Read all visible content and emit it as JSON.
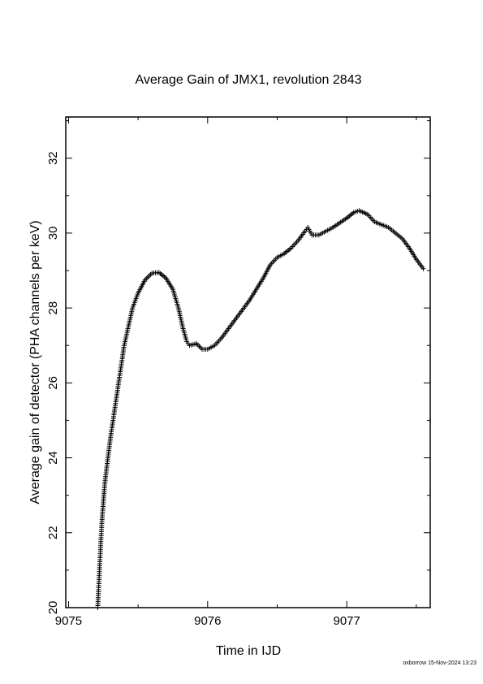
{
  "chart_data": {
    "type": "scatter",
    "title": "Average Gain of JMX1, revolution 2843",
    "xlabel": "Time in IJD",
    "ylabel": "Average gain of detector (PHA channels per keV)",
    "xlim": [
      9074.98,
      9077.6
    ],
    "ylim": [
      20,
      33.1
    ],
    "x_ticks": [
      9075,
      9076,
      9077
    ],
    "y_ticks": [
      20,
      22,
      24,
      26,
      28,
      30,
      32
    ],
    "x_tick_labels": [
      "9075",
      "9076",
      "9077"
    ],
    "y_tick_labels": [
      "20",
      "22",
      "24",
      "26",
      "28",
      "30",
      "32"
    ],
    "marker": "plus",
    "grid": false,
    "legend": "none",
    "series": [
      {
        "points": [
          [
            9075.21,
            20.0
          ],
          [
            9075.22,
            20.8
          ],
          [
            9075.23,
            21.6
          ],
          [
            9075.24,
            22.3
          ],
          [
            9075.25,
            22.8
          ],
          [
            9075.26,
            23.3
          ],
          [
            9075.28,
            23.9
          ],
          [
            9075.3,
            24.5
          ],
          [
            9075.32,
            25.0
          ],
          [
            9075.34,
            25.5
          ],
          [
            9075.36,
            26.0
          ],
          [
            9075.38,
            26.5
          ],
          [
            9075.4,
            27.0
          ],
          [
            9075.43,
            27.5
          ],
          [
            9075.46,
            28.0
          ],
          [
            9075.5,
            28.4
          ],
          [
            9075.55,
            28.75
          ],
          [
            9075.6,
            28.93
          ],
          [
            9075.65,
            28.95
          ],
          [
            9075.7,
            28.8
          ],
          [
            9075.75,
            28.5
          ],
          [
            9075.79,
            28.0
          ],
          [
            9075.82,
            27.5
          ],
          [
            9075.85,
            27.1
          ],
          [
            9075.87,
            27.0
          ],
          [
            9075.92,
            27.05
          ],
          [
            9075.96,
            26.9
          ],
          [
            9076.0,
            26.9
          ],
          [
            9076.05,
            27.0
          ],
          [
            9076.1,
            27.2
          ],
          [
            9076.2,
            27.7
          ],
          [
            9076.3,
            28.2
          ],
          [
            9076.4,
            28.8
          ],
          [
            9076.45,
            29.15
          ],
          [
            9076.5,
            29.35
          ],
          [
            9076.55,
            29.45
          ],
          [
            9076.6,
            29.6
          ],
          [
            9076.65,
            29.8
          ],
          [
            9076.7,
            30.05
          ],
          [
            9076.72,
            30.15
          ],
          [
            9076.75,
            29.95
          ],
          [
            9076.8,
            29.95
          ],
          [
            9076.85,
            30.05
          ],
          [
            9076.9,
            30.15
          ],
          [
            9077.0,
            30.4
          ],
          [
            9077.05,
            30.55
          ],
          [
            9077.09,
            30.6
          ],
          [
            9077.15,
            30.5
          ],
          [
            9077.2,
            30.3
          ],
          [
            9077.3,
            30.15
          ],
          [
            9077.4,
            29.85
          ],
          [
            9077.45,
            29.6
          ],
          [
            9077.5,
            29.3
          ],
          [
            9077.55,
            29.05
          ]
        ]
      }
    ]
  },
  "footer": {
    "credit": "oxborrow 15-Nov-2024 13:23"
  }
}
